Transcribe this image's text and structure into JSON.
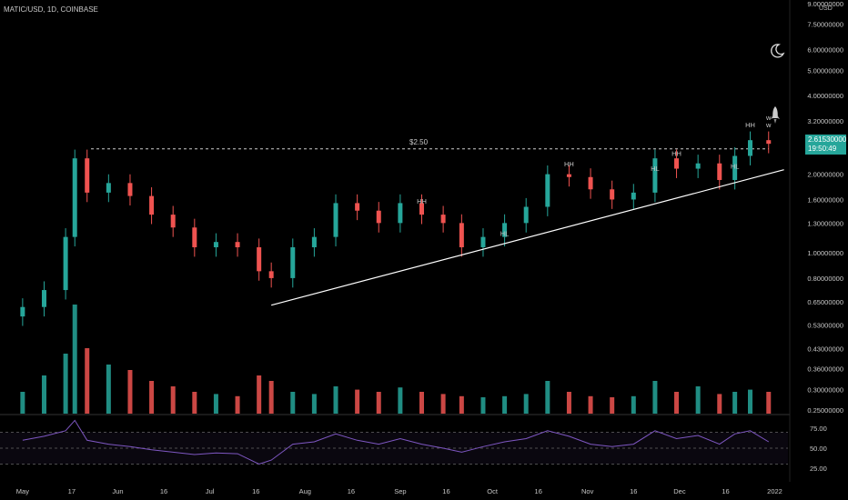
{
  "symbol": "MATIC/USD, 1D, COINBASE",
  "currency": "USD",
  "price_tag": {
    "price": "2.61530000",
    "countdown": "19:50:49",
    "color": "#26a69a"
  },
  "colors": {
    "up": "#26a69a",
    "down": "#ef5350",
    "rsi": "#7e57c2",
    "vol_ma": "#4dd0e1",
    "trendline": "#ffffff",
    "background": "#000000"
  },
  "icons": {
    "moon": "moon-icon",
    "rocket": "rocket-icon"
  },
  "chart_data": [
    {
      "type": "candlestick",
      "title": "MATIC/USD, 1D, COINBASE",
      "xlabel": "",
      "ylabel": "USD",
      "log_scale": true,
      "ylim": [
        0.25,
        9.0
      ],
      "y_ticks": [
        "9.00000000",
        "7.50000000",
        "6.00000000",
        "5.00000000",
        "4.00000000",
        "3.20000000",
        "2.00000000",
        "1.60000000",
        "1.30000000",
        "1.00000000",
        "0.80000000",
        "0.65000000",
        "0.53000000",
        "0.43000000",
        "0.36000000",
        "0.30000000",
        "0.25000000"
      ],
      "x_ticks": [
        "May",
        "17",
        "Jun",
        "16",
        "Jul",
        "16",
        "Aug",
        "16",
        "Sep",
        "16",
        "Oct",
        "16",
        "Nov",
        "16",
        "Dec",
        "16",
        "2022"
      ],
      "x": [
        "2021-05-01",
        "2021-05-08",
        "2021-05-15",
        "2021-05-18",
        "2021-05-22",
        "2021-05-29",
        "2021-06-05",
        "2021-06-12",
        "2021-06-19",
        "2021-06-26",
        "2021-07-03",
        "2021-07-10",
        "2021-07-17",
        "2021-07-21",
        "2021-07-28",
        "2021-08-04",
        "2021-08-11",
        "2021-08-18",
        "2021-08-25",
        "2021-09-01",
        "2021-09-08",
        "2021-09-15",
        "2021-09-21",
        "2021-09-28",
        "2021-10-05",
        "2021-10-12",
        "2021-10-19",
        "2021-10-26",
        "2021-11-02",
        "2021-11-09",
        "2021-11-16",
        "2021-11-23",
        "2021-11-30",
        "2021-12-07",
        "2021-12-14",
        "2021-12-19",
        "2021-12-24",
        "2021-12-30"
      ],
      "close": [
        0.62,
        0.72,
        1.15,
        2.3,
        1.7,
        1.85,
        1.65,
        1.4,
        1.25,
        1.05,
        1.1,
        1.05,
        0.85,
        0.8,
        1.05,
        1.15,
        1.55,
        1.45,
        1.3,
        1.55,
        1.4,
        1.3,
        1.05,
        1.15,
        1.3,
        1.5,
        2.0,
        1.95,
        1.75,
        1.6,
        1.7,
        2.3,
        2.1,
        2.2,
        1.9,
        2.35,
        2.7,
        2.615
      ],
      "horizontal_line": {
        "value": 2.5,
        "label": "$2.50",
        "style": "dashed"
      },
      "annotations": [
        "HH",
        "HL",
        "HH",
        "HL",
        "HH",
        "HL",
        "HH",
        "w",
        "w"
      ]
    },
    {
      "type": "bar",
      "title": "",
      "series": [
        {
          "name": "",
          "values": [
            0.2,
            0.35,
            0.55,
            1.0,
            0.6,
            0.45,
            0.4,
            0.3,
            0.25,
            0.2,
            0.18,
            0.16,
            0.35,
            0.3,
            0.2,
            0.18,
            0.25,
            0.22,
            0.2,
            0.24,
            0.2,
            0.18,
            0.16,
            0.15,
            0.16,
            0.18,
            0.3,
            0.2,
            0.16,
            0.15,
            0.16,
            0.3,
            0.2,
            0.25,
            0.18,
            0.2,
            0.22,
            0.2
          ]
        }
      ]
    },
    {
      "type": "line",
      "title": "",
      "ylim": [
        10,
        90
      ],
      "y_ticks": [
        "75.00",
        "50.00",
        "25.00"
      ],
      "series": [
        {
          "name": "",
          "values": [
            60,
            65,
            72,
            85,
            60,
            55,
            52,
            48,
            45,
            42,
            44,
            43,
            30,
            35,
            55,
            58,
            68,
            60,
            55,
            62,
            55,
            50,
            45,
            52,
            58,
            62,
            72,
            65,
            55,
            52,
            55,
            72,
            62,
            66,
            55,
            68,
            72,
            58
          ]
        }
      ]
    }
  ]
}
